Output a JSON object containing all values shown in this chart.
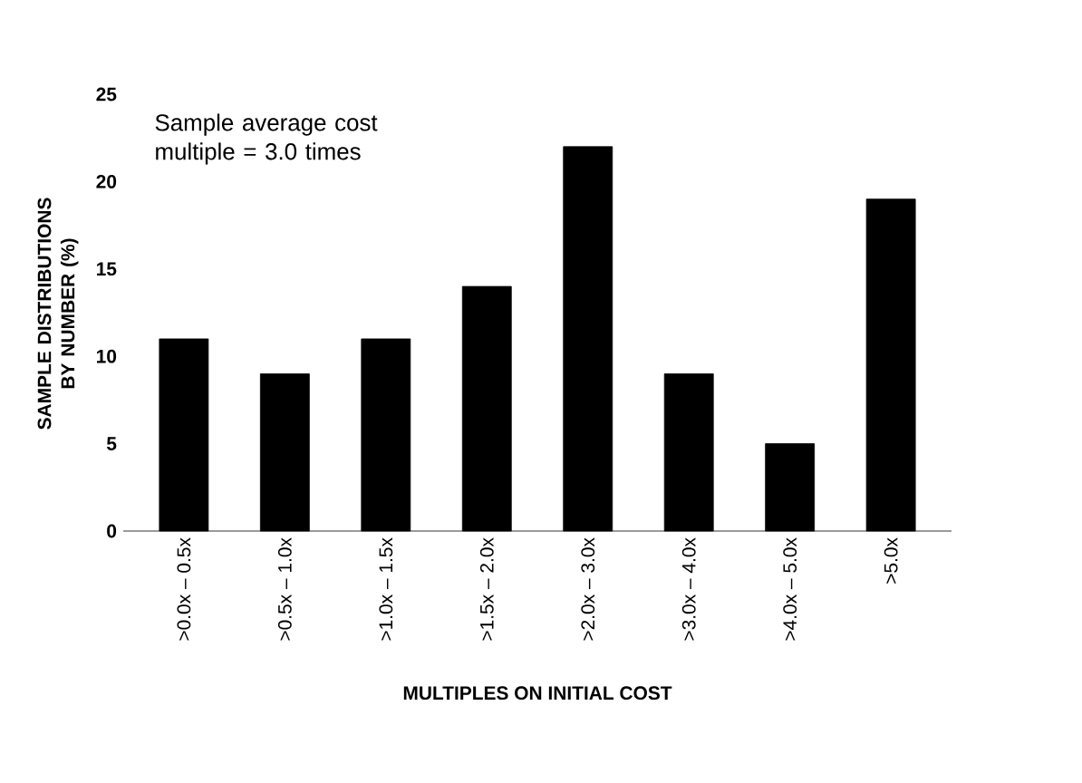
{
  "chart_data": {
    "type": "bar",
    "categories": [
      ">0.0x – 0.5x",
      ">0.5x – 1.0x",
      ">1.0x – 1.5x",
      ">1.5x – 2.0x",
      ">2.0x – 3.0x",
      ">3.0x – 4.0x",
      ">4.0x – 5.0x",
      ">5.0x"
    ],
    "values": [
      11,
      9,
      11,
      14,
      22,
      9,
      5,
      19
    ],
    "color": "#000000",
    "ylim": [
      0,
      25
    ],
    "yticks": [
      0,
      5,
      10,
      15,
      20,
      25
    ],
    "xlabel": "MULTIPLES ON INITIAL COST",
    "ylabel": "SAMPLE DISTRIBUTIONS BY NUMBER (%)",
    "annotations": [
      "Sample average cost multiple = 3.0 times"
    ]
  }
}
